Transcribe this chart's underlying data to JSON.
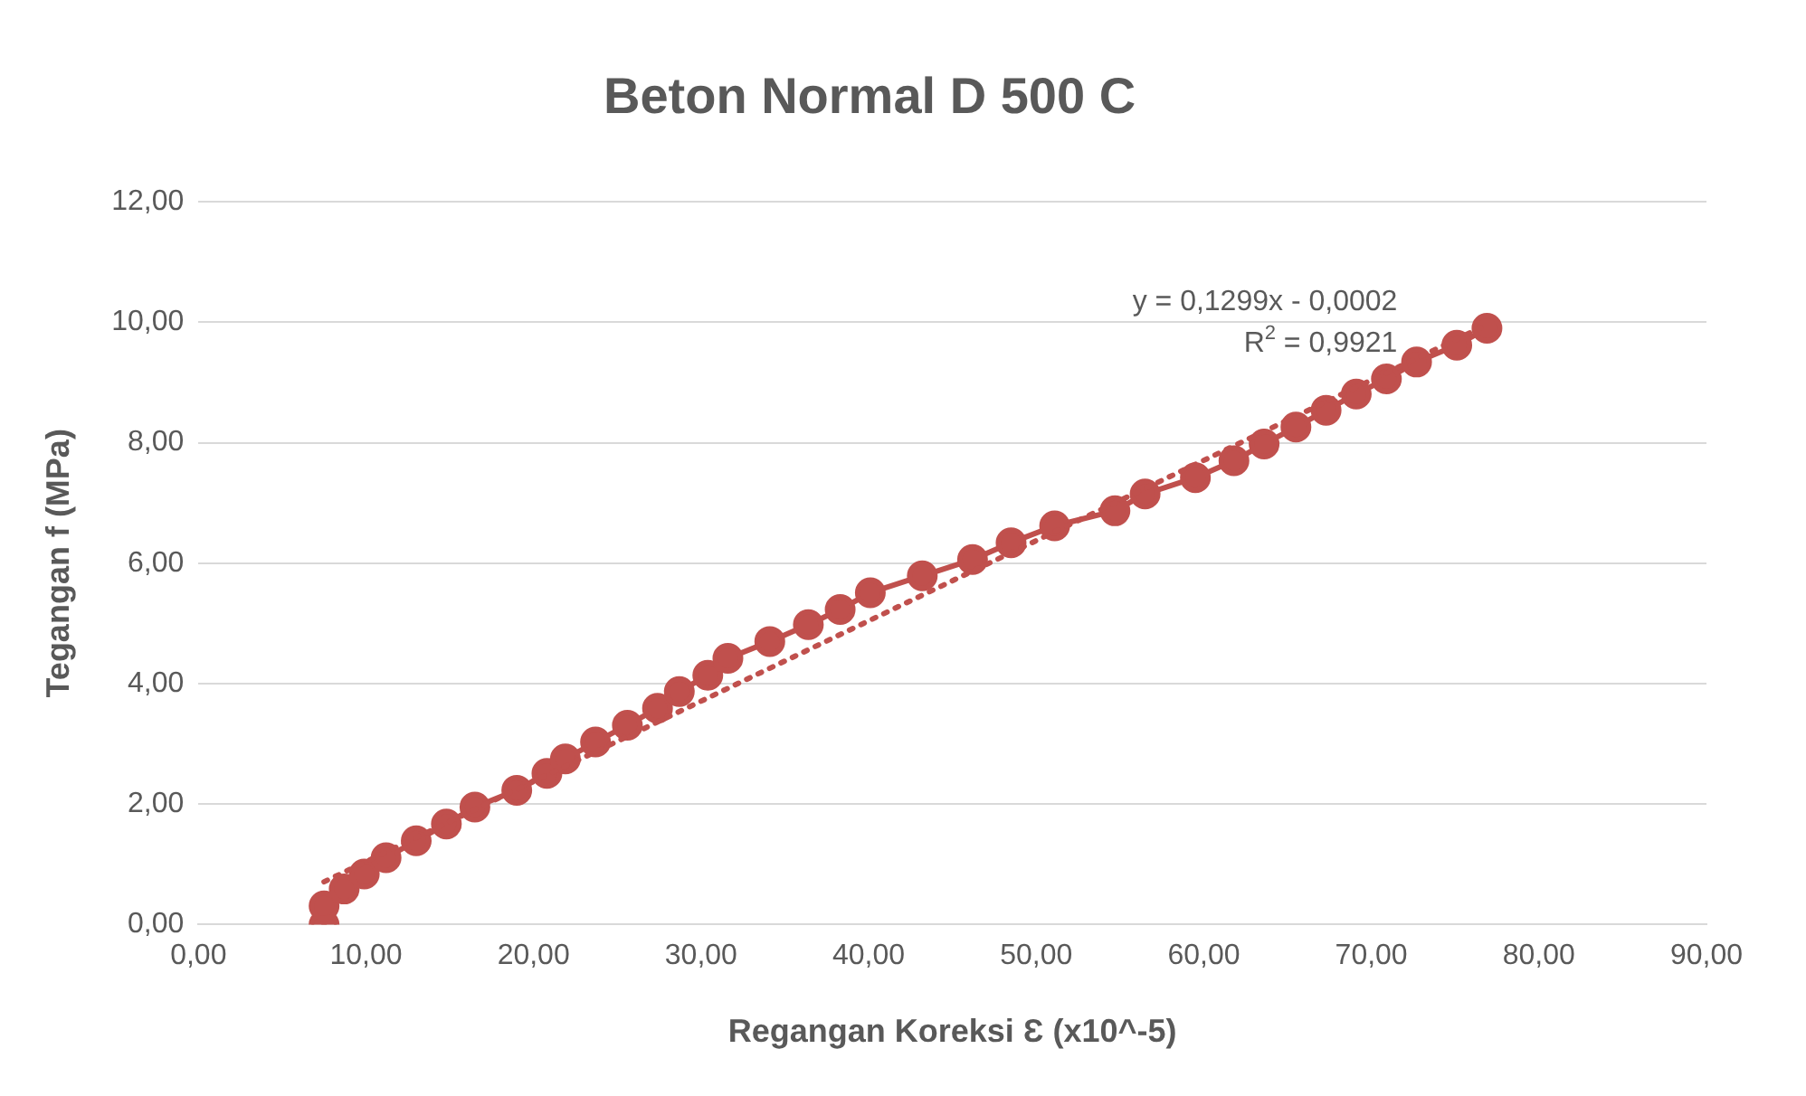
{
  "chart_data": {
    "type": "line",
    "title": "Beton Normal D 500 C",
    "xlabel": "Regangan Koreksi Ɛ (x10^-5)",
    "ylabel": "Tegangan f (MPa)",
    "xlim": [
      0,
      90
    ],
    "xticks": [
      {
        "value": 0,
        "label": "0,00"
      },
      {
        "value": 10,
        "label": "10,00"
      },
      {
        "value": 20,
        "label": "20,00"
      },
      {
        "value": 30,
        "label": "30,00"
      },
      {
        "value": 40,
        "label": "40,00"
      },
      {
        "value": 50,
        "label": "50,00"
      },
      {
        "value": 60,
        "label": "60,00"
      },
      {
        "value": 70,
        "label": "70,00"
      },
      {
        "value": 80,
        "label": "80,00"
      },
      {
        "value": 90,
        "label": "90,00"
      }
    ],
    "ylim": [
      0,
      12
    ],
    "yticks": [
      {
        "value": 0,
        "label": "0,00"
      },
      {
        "value": 2,
        "label": "2,00"
      },
      {
        "value": 4,
        "label": "4,00"
      },
      {
        "value": 6,
        "label": "6,00"
      },
      {
        "value": 8,
        "label": "8,00"
      },
      {
        "value": 10,
        "label": "10,00"
      },
      {
        "value": 12,
        "label": "12,00"
      }
    ],
    "grid": "y",
    "legend": false,
    "series": [
      {
        "color": "#c0504d",
        "marker": "circle",
        "line_style": "solid",
        "x": [
          7.5,
          7.5,
          8.7,
          9.9,
          11.2,
          13.0,
          14.8,
          16.5,
          19.0,
          20.8,
          21.9,
          23.7,
          25.6,
          27.4,
          28.7,
          30.4,
          31.6,
          34.1,
          36.4,
          38.3,
          40.1,
          43.2,
          46.2,
          48.5,
          51.1,
          54.7,
          56.5,
          59.5,
          61.8,
          63.6,
          65.5,
          67.3,
          69.1,
          70.9,
          72.7,
          75.1,
          76.9
        ],
        "values": [
          0,
          0.31,
          0.59,
          0.84,
          1.11,
          1.39,
          1.67,
          1.95,
          2.23,
          2.51,
          2.75,
          3.03,
          3.31,
          3.59,
          3.87,
          4.14,
          4.42,
          4.7,
          4.98,
          5.23,
          5.51,
          5.79,
          6.06,
          6.34,
          6.62,
          6.87,
          7.15,
          7.42,
          7.7,
          7.98,
          8.26,
          8.54,
          8.81,
          9.06,
          9.34,
          9.62,
          9.9
        ]
      },
      {
        "type": "line",
        "color": "#c0504d",
        "marker": "none",
        "line_style": "dotted",
        "x": [
          7.5,
          76.9
        ],
        "values": [
          0.71,
          9.96
        ]
      }
    ],
    "annotations": [
      "y = 0,1299x - 0,0002",
      "R$^{2}$ = 0,9921"
    ]
  }
}
